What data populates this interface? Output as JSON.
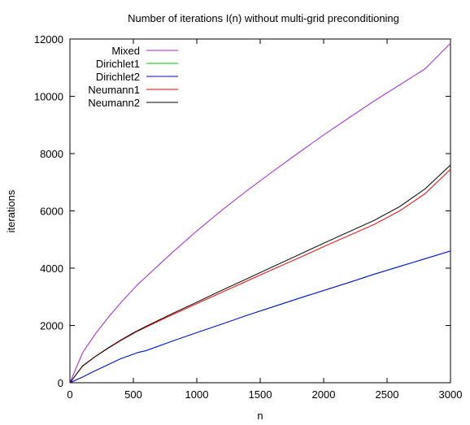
{
  "chart_data": {
    "type": "line",
    "title": "Number of iterations I(n) without multi-grid preconditioning",
    "xlabel": "n",
    "ylabel": "iterations",
    "xlim": [
      0,
      3000
    ],
    "ylim": [
      0,
      12000
    ],
    "xticks": [
      "0",
      "500",
      "1000",
      "1500",
      "2000",
      "2500",
      "3000"
    ],
    "yticks": [
      "0",
      "2000",
      "4000",
      "6000",
      "8000",
      "10000",
      "12000"
    ],
    "grid": false,
    "legend_position": "top-left",
    "x": [
      0,
      100,
      200,
      300,
      400,
      500,
      520,
      540,
      600,
      800,
      1000,
      1200,
      1400,
      1600,
      1800,
      2000,
      2200,
      2400,
      2600,
      2800,
      3000
    ],
    "series": [
      {
        "name": "Mixed",
        "color": "#a020f0",
        "values": [
          0,
          1050,
          1700,
          2270,
          2790,
          3270,
          3360,
          3450,
          3700,
          4520,
          5300,
          6030,
          6720,
          7380,
          8020,
          8650,
          9250,
          9840,
          10400,
          10960,
          11850
        ]
      },
      {
        "name": "Dirichlet1",
        "color": "#00c000",
        "values": [
          0,
          200,
          420,
          630,
          840,
          1000,
          1030,
          1060,
          1120,
          1440,
          1750,
          2050,
          2360,
          2650,
          2940,
          3220,
          3500,
          3790,
          4060,
          4330,
          4600
        ]
      },
      {
        "name": "Dirichlet2",
        "color": "#0000ff",
        "values": [
          0,
          200,
          420,
          630,
          840,
          1000,
          1030,
          1060,
          1120,
          1440,
          1750,
          2050,
          2360,
          2650,
          2940,
          3220,
          3500,
          3790,
          4060,
          4330,
          4600
        ]
      },
      {
        "name": "Neumann1",
        "color": "#ff0000",
        "values": [
          0,
          580,
          910,
          1200,
          1470,
          1720,
          1770,
          1810,
          1940,
          2360,
          2760,
          3160,
          3560,
          3960,
          4350,
          4750,
          5140,
          5530,
          6000,
          6600,
          7450
        ]
      },
      {
        "name": "Neumann2",
        "color": "#000000",
        "values": [
          0,
          590,
          920,
          1210,
          1490,
          1740,
          1790,
          1830,
          1970,
          2400,
          2810,
          3230,
          3640,
          4050,
          4460,
          4870,
          5270,
          5670,
          6150,
          6770,
          7600
        ]
      }
    ]
  }
}
